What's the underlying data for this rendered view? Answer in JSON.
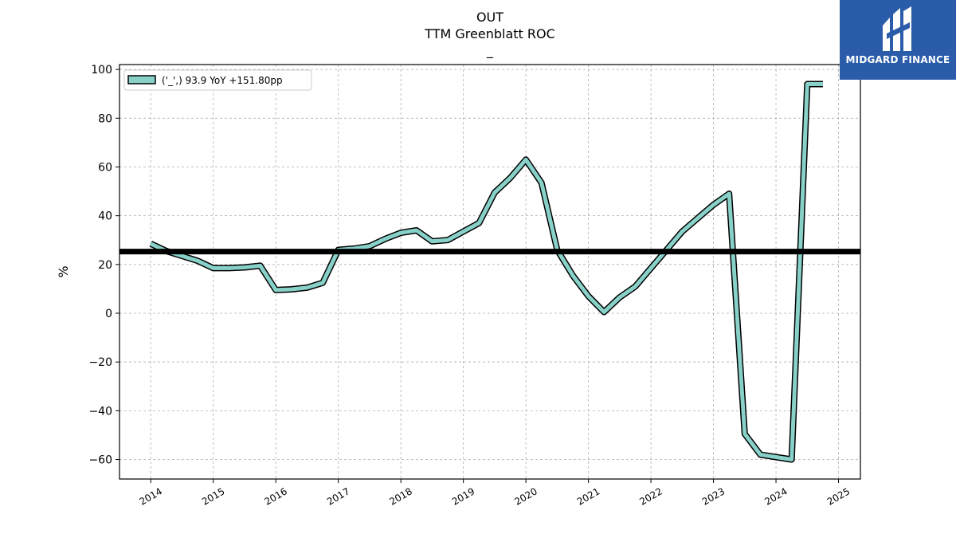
{
  "brand": {
    "name": "MIDGARD FINANCE",
    "logo_icon": "midgard-logo-icon",
    "color": "#2a5caa"
  },
  "chart_data": {
    "type": "line",
    "title": "OUT",
    "subtitle": "TTM Greenblatt ROC",
    "subtitle2": "_",
    "xlabel": "",
    "ylabel": "%",
    "ylim": [
      -68,
      102
    ],
    "xlim": [
      2013.5,
      2025.35
    ],
    "yticks": [
      -60,
      -40,
      -20,
      0,
      20,
      40,
      60,
      80,
      100
    ],
    "yticklabels": [
      "−60",
      "−40",
      "−20",
      "0",
      "20",
      "40",
      "60",
      "80",
      "100"
    ],
    "xticks": [
      2014,
      2015,
      2016,
      2017,
      2018,
      2019,
      2020,
      2021,
      2022,
      2023,
      2024,
      2025
    ],
    "xticklabels": [
      "2014",
      "2015",
      "2016",
      "2017",
      "2018",
      "2019",
      "2020",
      "2021",
      "2022",
      "2023",
      "2024",
      "2025"
    ],
    "grid": true,
    "legend_position": "top-left",
    "reference_line": {
      "y": 25.3,
      "color": "#000000"
    },
    "series": [
      {
        "name": "('_',) 93.9 YoY +151.80pp",
        "color": "#88d1c9",
        "x": [
          2014.0,
          2014.25,
          2014.5,
          2014.75,
          2015.0,
          2015.25,
          2015.5,
          2015.75,
          2016.0,
          2016.25,
          2016.5,
          2016.75,
          2017.0,
          2017.25,
          2017.5,
          2017.75,
          2018.0,
          2018.25,
          2018.5,
          2018.75,
          2019.0,
          2019.25,
          2019.5,
          2019.75,
          2020.0,
          2020.25,
          2020.5,
          2020.75,
          2021.0,
          2021.25,
          2021.5,
          2021.75,
          2022.0,
          2022.25,
          2022.5,
          2022.75,
          2023.0,
          2023.25,
          2023.5,
          2023.75,
          2024.0,
          2024.25,
          2024.5,
          2024.75
        ],
        "values": [
          28.5,
          25.5,
          23.5,
          21.5,
          18.5,
          18.5,
          18.8,
          19.5,
          9.5,
          9.8,
          10.5,
          12.5,
          26.0,
          26.5,
          27.5,
          30.5,
          33.0,
          34.0,
          29.5,
          30.0,
          33.5,
          37.0,
          49.5,
          55.5,
          63.0,
          53.5,
          26.0,
          15.5,
          7.0,
          0.5,
          6.5,
          11.0,
          18.5,
          26.0,
          33.5,
          39.0,
          44.5,
          49.0,
          -49.5,
          -58.0,
          -59.0,
          -60.0,
          94.0,
          94.0
        ]
      }
    ]
  }
}
